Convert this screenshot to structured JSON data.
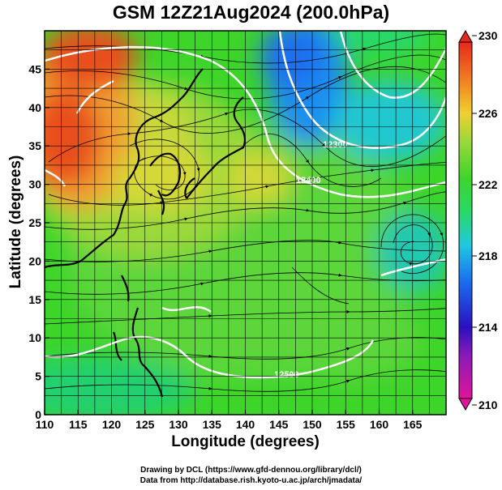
{
  "title": "GSM 12Z21Aug2024 (200.0hPa)",
  "chart_data": {
    "type": "heatmap",
    "xlabel": "Longitude (degrees)",
    "ylabel": "Latitude  (degrees)",
    "xlim": [
      110,
      170
    ],
    "ylim": [
      0,
      50
    ],
    "x_ticks": [
      "110",
      "115",
      "120",
      "125",
      "130",
      "135",
      "140",
      "145",
      "150",
      "155",
      "160",
      "165"
    ],
    "y_ticks": [
      "0",
      "5",
      "10",
      "15",
      "20",
      "25",
      "30",
      "35",
      "40",
      "45"
    ],
    "colorbar": {
      "range": [
        210,
        230
      ],
      "ticks": [
        "230",
        "226",
        "222",
        "218",
        "214",
        "210"
      ]
    },
    "contour_labels": [
      "12300",
      "12400",
      "12500"
    ],
    "features": {
      "warm_maximum": {
        "lon": 112,
        "lat": 38,
        "value": 228
      },
      "cold_minimum_north": {
        "lon": 150,
        "lat": 42,
        "value": 218
      },
      "cyclonic_vortex": {
        "lon": 163,
        "lat": 24,
        "value": 219
      },
      "anticyclone_center": {
        "lon": 128,
        "lat": 33
      }
    },
    "grid": true
  },
  "credits": {
    "line1": "Drawing by DCL (https://www.gfd-dennou.org/library/dcl/)",
    "line2": "Data from http://database.rish.kyoto-u.ac.jp/arch/jmadata/"
  },
  "colors": {
    "c210": "#e0149a",
    "c213": "#2a10c0",
    "c216": "#1a6ff0",
    "c218": "#20c8e0",
    "c220": "#28d86a",
    "c222": "#3ed52a",
    "c224": "#9ad83a",
    "c226": "#f0d030",
    "c228": "#f07a20",
    "c230": "#e8281e"
  }
}
